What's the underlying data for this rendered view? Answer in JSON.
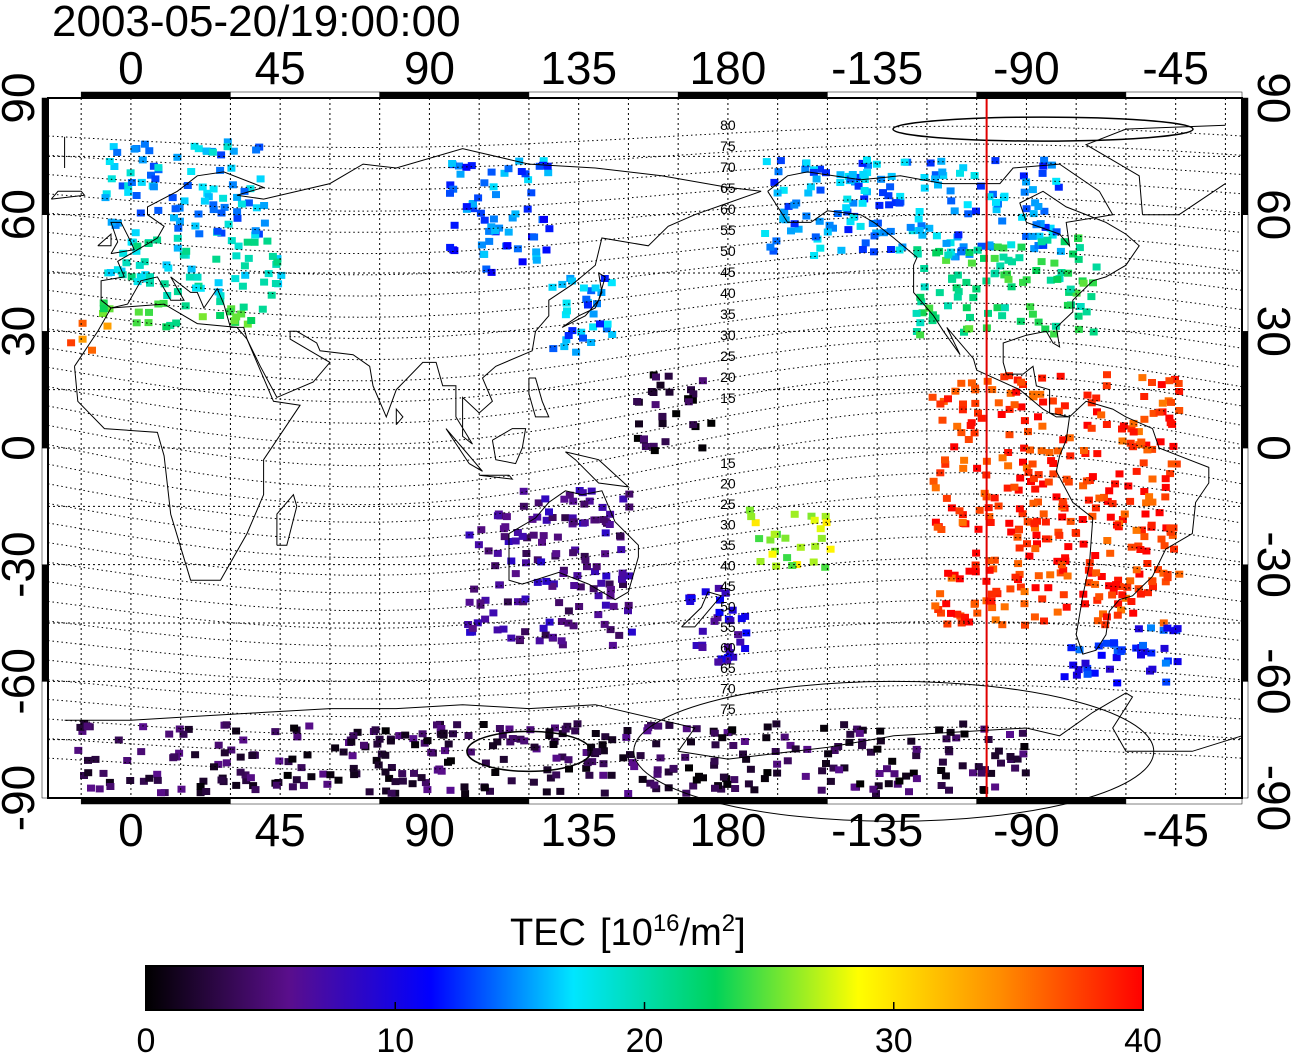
{
  "title": "2003-05-20/19:00:00",
  "map": {
    "lon_ticks_top": [
      "0",
      "45",
      "90",
      "135",
      "180",
      "-135",
      "-90",
      "-45"
    ],
    "lon_ticks_bottom": [
      "0",
      "45",
      "90",
      "135",
      "180",
      "-135",
      "-90",
      "-45"
    ],
    "lat_ticks_left": [
      "90",
      "60",
      "30",
      "0",
      "-30",
      "-60",
      "-90"
    ],
    "lat_ticks_right": [
      "90",
      "60",
      "30",
      "0",
      "-30",
      "-60",
      "-90"
    ],
    "magnetic_labels_north": [
      "80",
      "75",
      "70",
      "65",
      "60",
      "55",
      "50",
      "45",
      "40",
      "35",
      "30",
      "25",
      "20",
      "15"
    ],
    "magnetic_labels_south": [
      "15",
      "20",
      "25",
      "30",
      "35",
      "40",
      "45",
      "50",
      "55",
      "60",
      "65",
      "70",
      "75"
    ],
    "red_line_longitude": -102,
    "grid": true
  },
  "colorbar": {
    "label": "TEC",
    "unit_prefix": "[10",
    "unit_exp": "16",
    "unit_mid": "/m",
    "unit_exp2": "2",
    "unit_suffix": "]",
    "ticks": [
      "0",
      "10",
      "20",
      "30",
      "40"
    ],
    "min": 0,
    "max": 40,
    "colors": [
      "#000000",
      "#5a0e8c",
      "#0000ff",
      "#00e6ff",
      "#00d25a",
      "#ffff00",
      "#ff8c00",
      "#ff0000"
    ]
  },
  "chart_data": {
    "type": "heatmap",
    "title": "2003-05-20/19:00:00",
    "xlim": [
      -25,
      335
    ],
    "ylim": [
      -90,
      90
    ],
    "colorbar_range": [
      0,
      40
    ],
    "regions": [
      {
        "lon": [
          -10,
          40
        ],
        "lat": [
          55,
          80
        ],
        "tec": 16
      },
      {
        "lon": [
          -10,
          45
        ],
        "lat": [
          40,
          55
        ],
        "tec": 19
      },
      {
        "lon": [
          -10,
          40
        ],
        "lat": [
          32,
          40
        ],
        "tec": 23
      },
      {
        "lon": [
          -20,
          -8
        ],
        "lat": [
          26,
          33
        ],
        "tec": 36
      },
      {
        "lon": [
          95,
          125
        ],
        "lat": [
          45,
          75
        ],
        "tec": 14
      },
      {
        "lon": [
          125,
          145
        ],
        "lat": [
          25,
          45
        ],
        "tec": 15
      },
      {
        "lon": [
          150,
          175
        ],
        "lat": [
          0,
          20
        ],
        "tec": 2
      },
      {
        "lon": [
          100,
          150
        ],
        "lat": [
          -50,
          -10
        ],
        "tec": 6
      },
      {
        "lon": [
          165,
          185
        ],
        "lat": [
          -55,
          -35
        ],
        "tec": 9
      },
      {
        "lon": [
          185,
          210
        ],
        "lat": [
          -30,
          -15
        ],
        "tec": 27
      },
      {
        "lon": [
          190,
          280
        ],
        "lat": [
          50,
          75
        ],
        "tec": 15
      },
      {
        "lon": [
          235,
          290
        ],
        "lat": [
          30,
          55
        ],
        "tec": 22
      },
      {
        "lon": [
          240,
          315
        ],
        "lat": [
          -45,
          20
        ],
        "tec": 38
      },
      {
        "lon": [
          280,
          315
        ],
        "lat": [
          -60,
          -45
        ],
        "tec": 12
      },
      {
        "lon": [
          -20,
          270
        ],
        "lat": [
          -88,
          -70
        ],
        "tec": 3
      }
    ]
  }
}
